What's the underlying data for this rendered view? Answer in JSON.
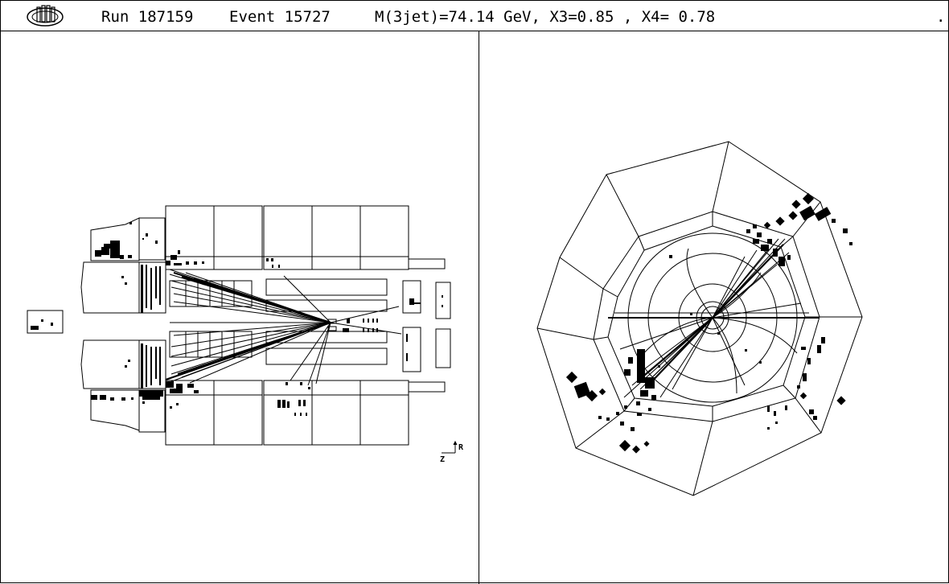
{
  "header": {
    "run": "Run 187159",
    "event": "Event 15727",
    "summary": "M(3jet)=74.14 GeV, X3=0.85 , X4= 0.78",
    "end_mark": "."
  },
  "side_view": {
    "axis_z": "Z",
    "axis_r": "R"
  },
  "colors": {
    "ink": "#000000",
    "paper": "#ffffff"
  }
}
